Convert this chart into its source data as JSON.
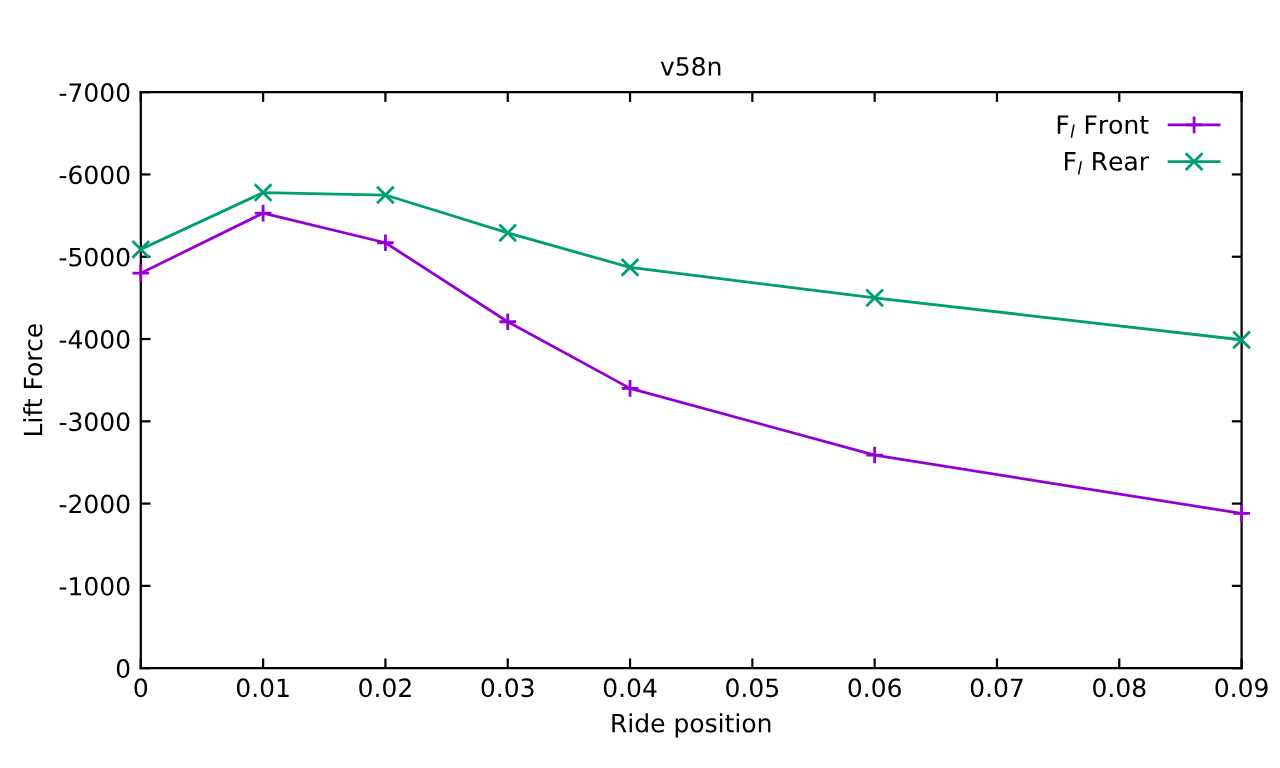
{
  "chart_data": {
    "type": "line",
    "title": "v58n",
    "xlabel": "Ride position",
    "ylabel": "Lift Force",
    "x": [
      0,
      0.01,
      0.02,
      0.03,
      0.04,
      0.06,
      0.09
    ],
    "series": [
      {
        "name": "F$_{l}$ Front",
        "color": "#9400d3",
        "marker": "plus",
        "values": [
          -4800,
          -5530,
          -5170,
          -4210,
          -3400,
          -2590,
          -1880
        ]
      },
      {
        "name": "F$_{l}$ Rear",
        "color": "#009e73",
        "marker": "cross",
        "values": [
          -5090,
          -5780,
          -5750,
          -5290,
          -4870,
          -4500,
          -3990
        ]
      }
    ],
    "xlim": [
      0,
      0.09
    ],
    "xticks": [
      0,
      0.01,
      0.02,
      0.03,
      0.04,
      0.05,
      0.06,
      0.07,
      0.08,
      0.09
    ],
    "ylim": [
      0,
      -7000
    ],
    "yticks": [
      0,
      -1000,
      -2000,
      -3000,
      -4000,
      -5000,
      -6000,
      -7000
    ],
    "legend": "top right",
    "grid": false
  }
}
